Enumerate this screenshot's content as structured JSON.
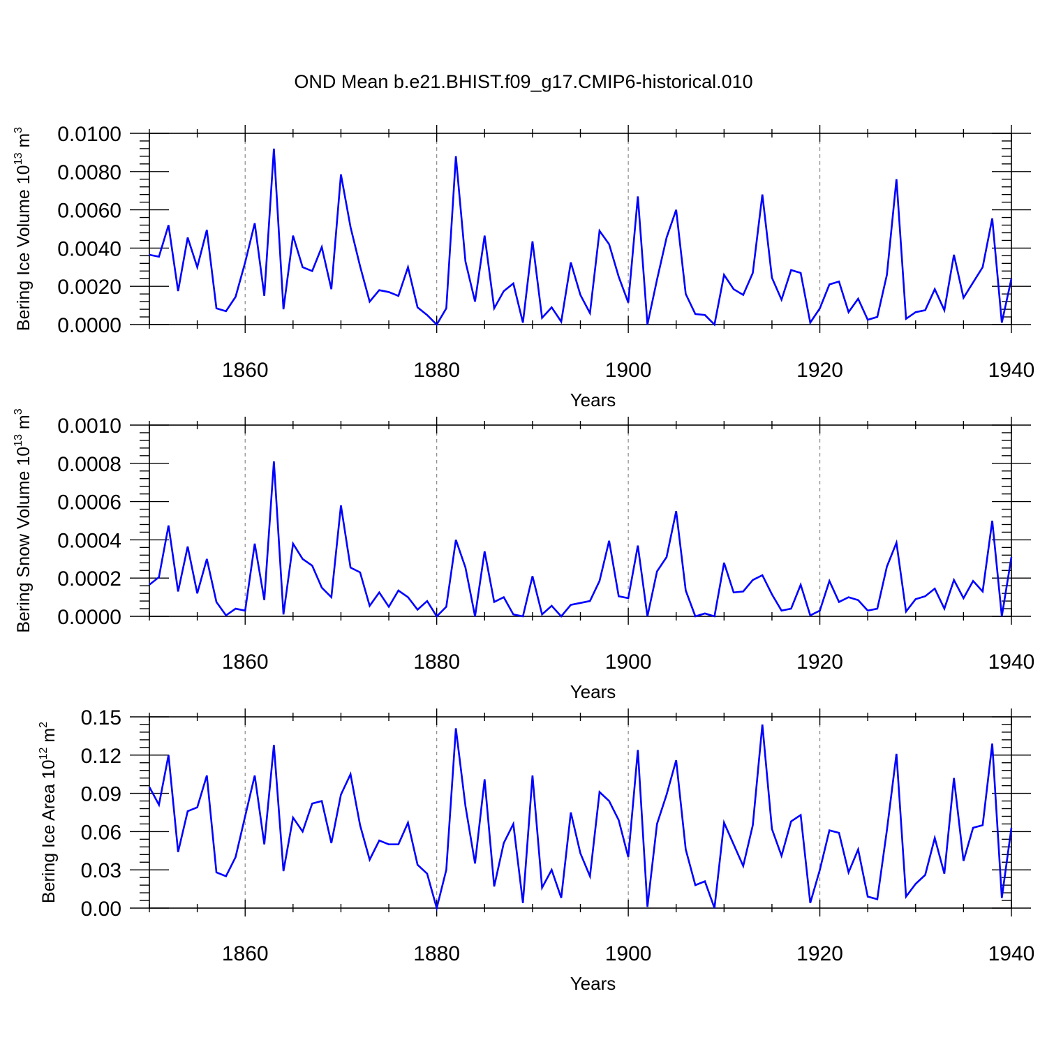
{
  "title": "OND Mean b.e21.BHIST.f09_g17.CMIP6-historical.010",
  "colors": {
    "series": "#0000ff",
    "axis": "#000000",
    "grid": "#888888"
  },
  "chart_data": [
    {
      "type": "line",
      "title": "",
      "xlabel": "Years",
      "ylabel_main": "Bering Ice Volume 10",
      "ylabel_exp": "13",
      "ylabel_unit": " m",
      "ylabel_unit_exp": "3",
      "xlim": [
        1850,
        1940
      ],
      "ylim": [
        0,
        0.01
      ],
      "xticks": [
        1860,
        1880,
        1900,
        1920,
        1940
      ],
      "xtick_labels": [
        "1860",
        "1880",
        "1900",
        "1920",
        "1940"
      ],
      "yticks": [
        0,
        0.002,
        0.004,
        0.006,
        0.008,
        0.01
      ],
      "ytick_labels": [
        "0.0000",
        "0.0020",
        "0.0040",
        "0.0060",
        "0.0080",
        "0.0100"
      ],
      "grid_x": true,
      "series": [
        {
          "name": "Bering Ice Volume",
          "x_start": 1850,
          "values": [
            0.00365,
            0.00355,
            0.0052,
            0.00175,
            0.00455,
            0.003,
            0.00495,
            0.00085,
            0.0007,
            0.00145,
            0.00325,
            0.0053,
            0.0015,
            0.0092,
            0.0008,
            0.00465,
            0.003,
            0.0028,
            0.00405,
            0.00185,
            0.00785,
            0.0051,
            0.00305,
            0.0012,
            0.0018,
            0.0017,
            0.0015,
            0.003,
            0.0009,
            0.0005,
            0.0,
            0.00085,
            0.0088,
            0.0033,
            0.0012,
            0.00465,
            0.00085,
            0.00175,
            0.00215,
            0.0001,
            0.00435,
            0.00035,
            0.0009,
            0.00015,
            0.00325,
            0.00155,
            0.0006,
            0.0049,
            0.0042,
            0.0025,
            0.00115,
            0.0067,
            0.0,
            0.00235,
            0.00455,
            0.006,
            0.0016,
            0.00055,
            0.0005,
            0.0,
            0.0026,
            0.00185,
            0.00155,
            0.0027,
            0.0068,
            0.00245,
            0.0013,
            0.00285,
            0.0027,
            0.0001,
            0.00085,
            0.0021,
            0.00225,
            0.00065,
            0.00135,
            0.00025,
            0.0004,
            0.0026,
            0.0076,
            0.0003,
            0.00065,
            0.00075,
            0.00185,
            0.00075,
            0.00365,
            0.0014,
            0.0022,
            0.003,
            0.00555,
            0.0001,
            0.0024
          ]
        }
      ]
    },
    {
      "type": "line",
      "title": "",
      "xlabel": "Years",
      "ylabel_main": "Bering Snow Volume 10",
      "ylabel_exp": "13",
      "ylabel_unit": " m",
      "ylabel_unit_exp": "3",
      "xlim": [
        1850,
        1940
      ],
      "ylim": [
        0,
        0.001
      ],
      "xticks": [
        1860,
        1880,
        1900,
        1920,
        1940
      ],
      "xtick_labels": [
        "1860",
        "1880",
        "1900",
        "1920",
        "1940"
      ],
      "yticks": [
        0,
        0.0002,
        0.0004,
        0.0006,
        0.0008,
        0.001
      ],
      "ytick_labels": [
        "0.0000",
        "0.0002",
        "0.0004",
        "0.0006",
        "0.0008",
        "0.0010"
      ],
      "grid_x": true,
      "series": [
        {
          "name": "Bering Snow Volume",
          "x_start": 1850,
          "values": [
            0.000165,
            0.000205,
            0.000475,
            0.00013,
            0.000365,
            0.00012,
            0.0003,
            7.5e-05,
            5e-06,
            4e-05,
            3e-05,
            0.00038,
            8.5e-05,
            0.00081,
            1e-05,
            0.00038,
            0.0003,
            0.000265,
            0.00015,
            0.0001,
            0.00058,
            0.000255,
            0.00023,
            5.5e-05,
            0.000125,
            5e-05,
            0.000135,
            0.0001,
            3.5e-05,
            8e-05,
            0.0,
            5e-05,
            0.0004,
            0.000255,
            0.0,
            0.00034,
            7.5e-05,
            0.0001,
            1e-05,
            0.0,
            0.00021,
            1e-05,
            5.5e-05,
            0.0,
            6e-05,
            7e-05,
            8e-05,
            0.000185,
            0.000395,
            0.000105,
            9.5e-05,
            0.00037,
            0.0,
            0.000235,
            0.00031,
            0.00055,
            0.000135,
            0.0,
            1.5e-05,
            0.0,
            0.00028,
            0.000125,
            0.00013,
            0.00019,
            0.000215,
            0.000115,
            3e-05,
            4e-05,
            0.000165,
            5e-06,
            3e-05,
            0.000185,
            7.5e-05,
            0.0001,
            8.5e-05,
            3e-05,
            4e-05,
            0.00026,
            0.000385,
            2.5e-05,
            9e-05,
            0.000105,
            0.000145,
            4e-05,
            0.00019,
            9.5e-05,
            0.000185,
            0.00013,
            0.0005,
            0.0,
            0.00031
          ]
        }
      ]
    },
    {
      "type": "line",
      "title": "",
      "xlabel": "Years",
      "ylabel_main": "Bering Ice Area 10",
      "ylabel_exp": "12",
      "ylabel_unit": " m",
      "ylabel_unit_exp": "2",
      "xlim": [
        1850,
        1940
      ],
      "ylim": [
        0,
        0.15
      ],
      "xticks": [
        1860,
        1880,
        1900,
        1920,
        1940
      ],
      "xtick_labels": [
        "1860",
        "1880",
        "1900",
        "1920",
        "1940"
      ],
      "yticks": [
        0,
        0.03,
        0.06,
        0.09,
        0.12,
        0.15
      ],
      "ytick_labels": [
        "0.00",
        "0.03",
        "0.06",
        "0.09",
        "0.12",
        "0.15"
      ],
      "grid_x": true,
      "series": [
        {
          "name": "Bering Ice Area",
          "x_start": 1850,
          "values": [
            0.095,
            0.081,
            0.12,
            0.044,
            0.076,
            0.079,
            0.104,
            0.028,
            0.025,
            0.04,
            0.072,
            0.104,
            0.05,
            0.128,
            0.029,
            0.071,
            0.06,
            0.082,
            0.084,
            0.051,
            0.089,
            0.105,
            0.065,
            0.038,
            0.053,
            0.05,
            0.05,
            0.067,
            0.034,
            0.027,
            0.0,
            0.03,
            0.141,
            0.08,
            0.035,
            0.101,
            0.017,
            0.051,
            0.066,
            0.004,
            0.104,
            0.016,
            0.03,
            0.008,
            0.075,
            0.043,
            0.025,
            0.091,
            0.084,
            0.069,
            0.04,
            0.124,
            0.001,
            0.066,
            0.089,
            0.116,
            0.046,
            0.018,
            0.021,
            0.0,
            0.067,
            0.05,
            0.033,
            0.065,
            0.144,
            0.062,
            0.041,
            0.068,
            0.073,
            0.004,
            0.03,
            0.061,
            0.059,
            0.028,
            0.046,
            0.009,
            0.007,
            0.061,
            0.121,
            0.009,
            0.019,
            0.026,
            0.055,
            0.027,
            0.102,
            0.037,
            0.063,
            0.065,
            0.129,
            0.008,
            0.063
          ]
        }
      ]
    }
  ]
}
